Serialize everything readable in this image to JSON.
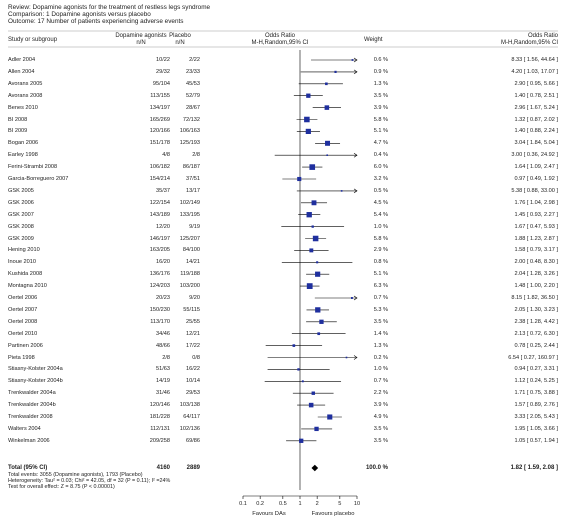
{
  "header": {
    "review": "Review:   Dopamine agonists for the treatment of restless legs syndrome",
    "comparison": "Comparison:   1 Dopamine agonists versus placebo",
    "outcome": "Outcome:   17 Number of patients experiencing adverse events"
  },
  "columns": {
    "study": "Study or subgroup",
    "exp1": "Dopamine agonists",
    "exp2": "n/N",
    "ctl1": "Placebo",
    "ctl2": "n/N",
    "or1": "Odds Ratio",
    "or2": "M-H,Random,95% CI",
    "weight": "Weight",
    "orr1": "Odds Ratio",
    "orr2": "M-H,Random,95% CI"
  },
  "chart_data": {
    "type": "forest",
    "x_scale": "log",
    "xlim": [
      0.1,
      10
    ],
    "ticks": [
      "0.1",
      "0.2",
      "0.5",
      "1",
      "2",
      "5",
      "10"
    ],
    "xlabel_left": "Favours DAs",
    "xlabel_right": "Favours placebo",
    "rows": [
      {
        "study": "Adler 2004",
        "exp": "10/22",
        "ctl": "2/22",
        "weight": "0.6 %",
        "ci_text": "8.33 [ 1.56, 44.64 ]",
        "or": 8.33,
        "lo": 1.56,
        "hi": 44.64
      },
      {
        "study": "Allen 2004",
        "exp": "29/32",
        "ctl": "23/33",
        "weight": "0.9 %",
        "ci_text": "4.20 [ 1.03, 17.07 ]",
        "or": 4.2,
        "lo": 1.03,
        "hi": 17.07
      },
      {
        "study": "Avorans 2005",
        "exp": "95/104",
        "ctl": "45/53",
        "weight": "1.3 %",
        "ci_text": "2.90 [ 0.95, 5.66 ]",
        "or": 2.9,
        "lo": 0.95,
        "hi": 5.66
      },
      {
        "study": "Avorans 2008",
        "exp": "113/155",
        "ctl": "52/79",
        "weight": "3.5 %",
        "ci_text": "1.40 [ 0.78, 2.51 ]",
        "or": 1.4,
        "lo": 0.78,
        "hi": 2.51
      },
      {
        "study": "Benes 2010",
        "exp": "134/197",
        "ctl": "28/67",
        "weight": "3.9 %",
        "ci_text": "2.96 [ 1.67, 5.24 ]",
        "or": 2.96,
        "lo": 1.67,
        "hi": 5.24
      },
      {
        "study": "BI 2008",
        "exp": "165/269",
        "ctl": "72/132",
        "weight": "5.8 %",
        "ci_text": "1.32 [ 0.87, 2.02 ]",
        "or": 1.32,
        "lo": 0.87,
        "hi": 2.02
      },
      {
        "study": "BI 2009",
        "exp": "120/166",
        "ctl": "106/163",
        "weight": "5.1 %",
        "ci_text": "1.40 [ 0.88, 2.24 ]",
        "or": 1.4,
        "lo": 0.88,
        "hi": 2.24
      },
      {
        "study": "Bogan 2006",
        "exp": "151/178",
        "ctl": "125/193",
        "weight": "4.7 %",
        "ci_text": "3.04 [ 1.84, 5.04 ]",
        "or": 3.04,
        "lo": 1.84,
        "hi": 5.04
      },
      {
        "study": "Earley 1998",
        "exp": "4/8",
        "ctl": "2/8",
        "weight": "0.4 %",
        "ci_text": "3.00 [ 0.36, 24.92 ]",
        "or": 3.0,
        "lo": 0.36,
        "hi": 24.92
      },
      {
        "study": "Ferini-Strambi 2008",
        "exp": "106/182",
        "ctl": "86/187",
        "weight": "6.0 %",
        "ci_text": "1.64 [ 1.09, 2.47 ]",
        "or": 1.64,
        "lo": 1.09,
        "hi": 2.47
      },
      {
        "study": "Garcia-Borreguero 2007",
        "exp": "154/214",
        "ctl": "37/51",
        "weight": "3.2 %",
        "ci_text": "0.97 [ 0.49, 1.92 ]",
        "or": 0.97,
        "lo": 0.49,
        "hi": 1.92
      },
      {
        "study": "GSK 2005",
        "exp": "35/37",
        "ctl": "13/17",
        "weight": "0.5 %",
        "ci_text": "5.38 [ 0.88, 33.00 ]",
        "or": 5.38,
        "lo": 0.88,
        "hi": 33.0
      },
      {
        "study": "GSK 2006",
        "exp": "122/154",
        "ctl": "102/149",
        "weight": "4.5 %",
        "ci_text": "1.76 [ 1.04, 2.98 ]",
        "or": 1.76,
        "lo": 1.04,
        "hi": 2.98
      },
      {
        "study": "GSK 2007",
        "exp": "143/189",
        "ctl": "133/195",
        "weight": "5.4 %",
        "ci_text": "1.45 [ 0.93, 2.27 ]",
        "or": 1.45,
        "lo": 0.93,
        "hi": 2.27
      },
      {
        "study": "GSK 2008",
        "exp": "12/20",
        "ctl": "9/19",
        "weight": "1.0 %",
        "ci_text": "1.67 [ 0.47, 5.93 ]",
        "or": 1.67,
        "lo": 0.47,
        "hi": 5.93
      },
      {
        "study": "GSK 2009",
        "exp": "146/197",
        "ctl": "125/207",
        "weight": "5.8 %",
        "ci_text": "1.88 [ 1.23, 2.87 ]",
        "or": 1.88,
        "lo": 1.23,
        "hi": 2.87
      },
      {
        "study": "Hening 2010",
        "exp": "163/205",
        "ctl": "84/100",
        "weight": "2.9 %",
        "ci_text": "1.58 [ 0.79, 3.17 ]",
        "or": 1.58,
        "lo": 0.79,
        "hi": 3.17
      },
      {
        "study": "Inoue 2010",
        "exp": "16/20",
        "ctl": "14/21",
        "weight": "0.8 %",
        "ci_text": "2.00 [ 0.48, 8.30 ]",
        "or": 2.0,
        "lo": 0.48,
        "hi": 8.3
      },
      {
        "study": "Kushida 2008",
        "exp": "136/176",
        "ctl": "119/188",
        "weight": "5.1 %",
        "ci_text": "2.04 [ 1.28, 3.26 ]",
        "or": 2.04,
        "lo": 1.28,
        "hi": 3.26
      },
      {
        "study": "Montagna 2010",
        "exp": "124/203",
        "ctl": "103/200",
        "weight": "6.3 %",
        "ci_text": "1.48 [ 1.00, 2.20 ]",
        "or": 1.48,
        "lo": 1.0,
        "hi": 2.2
      },
      {
        "study": "Oertel 2006",
        "exp": "20/23",
        "ctl": "9/20",
        "weight": "0.7 %",
        "ci_text": "8.15 [ 1.82, 36.50 ]",
        "or": 8.15,
        "lo": 1.82,
        "hi": 36.5
      },
      {
        "study": "Oertel 2007",
        "exp": "150/230",
        "ctl": "55/115",
        "weight": "5.3 %",
        "ci_text": "2.05 [ 1.30, 3.23 ]",
        "or": 2.05,
        "lo": 1.3,
        "hi": 3.23
      },
      {
        "study": "Oertel 2008",
        "exp": "113/170",
        "ctl": "25/55",
        "weight": "3.5 %",
        "ci_text": "2.38 [ 1.28, 4.42 ]",
        "or": 2.38,
        "lo": 1.28,
        "hi": 4.42
      },
      {
        "study": "Oertel 2010",
        "exp": "34/46",
        "ctl": "12/21",
        "weight": "1.4 %",
        "ci_text": "2.13 [ 0.72, 6.30 ]",
        "or": 2.13,
        "lo": 0.72,
        "hi": 6.3
      },
      {
        "study": "Partinen 2006",
        "exp": "48/66",
        "ctl": "17/22",
        "weight": "1.3 %",
        "ci_text": "0.78 [ 0.25, 2.44 ]",
        "or": 0.78,
        "lo": 0.25,
        "hi": 2.44
      },
      {
        "study": "Pieta 1998",
        "exp": "2/8",
        "ctl": "0/8",
        "weight": "0.2 %",
        "ci_text": "6.54 [ 0.27, 160.97 ]",
        "or": 6.54,
        "lo": 0.27,
        "hi": 160.97
      },
      {
        "study": "Stiasny-Kolster 2004a",
        "exp": "51/63",
        "ctl": "16/22",
        "weight": "1.0 %",
        "ci_text": "0.94 [ 0.27, 3.31 ]",
        "or": 0.94,
        "lo": 0.27,
        "hi": 3.31
      },
      {
        "study": "Stiasny-Kolster 2004b",
        "exp": "14/19",
        "ctl": "10/14",
        "weight": "0.7 %",
        "ci_text": "1.12 [ 0.24, 5.25 ]",
        "or": 1.12,
        "lo": 0.24,
        "hi": 5.25
      },
      {
        "study": "Trenkwalder 2004a",
        "exp": "31/46",
        "ctl": "29/53",
        "weight": "2.2 %",
        "ci_text": "1.71 [ 0.75, 3.88 ]",
        "or": 1.71,
        "lo": 0.75,
        "hi": 3.88
      },
      {
        "study": "Trenkwalder 2004b",
        "exp": "120/146",
        "ctl": "103/138",
        "weight": "3.9 %",
        "ci_text": "1.57 [ 0.89, 2.76 ]",
        "or": 1.57,
        "lo": 0.89,
        "hi": 2.76
      },
      {
        "study": "Trenkwalder 2008",
        "exp": "181/228",
        "ctl": "64/117",
        "weight": "4.9 %",
        "ci_text": "3.33 [ 2.05, 5.43 ]",
        "or": 3.33,
        "lo": 2.05,
        "hi": 5.43
      },
      {
        "study": "Walters 2004",
        "exp": "112/131",
        "ctl": "102/136",
        "weight": "3.5 %",
        "ci_text": "1.95 [ 1.05, 3.66 ]",
        "or": 1.95,
        "lo": 1.05,
        "hi": 3.66
      },
      {
        "study": "Winkelman 2006",
        "exp": "209/258",
        "ctl": "69/86",
        "weight": "3.5 %",
        "ci_text": "1.05 [ 0.57, 1.94 ]",
        "or": 1.05,
        "lo": 0.57,
        "hi": 1.94
      }
    ],
    "total": {
      "label": "Total (95% CI)",
      "exp": "4160",
      "ctl": "2889",
      "weight": "100.0 %",
      "ci_text": "1.82 [ 1.59, 2.08 ]",
      "or": 1.82,
      "lo": 1.59,
      "hi": 2.08
    }
  },
  "footnotes": {
    "events": "Total events: 3055 (Dopamine agonists), 1793 (Placebo)",
    "heterogeneity": "Heterogeneity: Tau² = 0.03; Chi² = 42.05, df = 32 (P = 0.11); I² =24%",
    "overall": "Test for overall effect: Z = 8.75 (P < 0.00001)"
  },
  "colors": {
    "marker": "#1f2f9e",
    "line": "#000000",
    "text": "#222222"
  }
}
